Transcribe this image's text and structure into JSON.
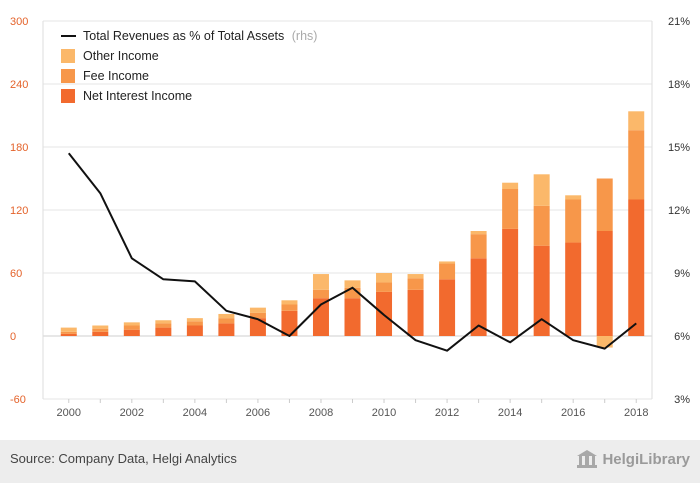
{
  "chart_data": {
    "type": "bar",
    "stacked": true,
    "categories": [
      "2000",
      "2001",
      "2002",
      "2003",
      "2004",
      "2005",
      "2006",
      "2007",
      "2008",
      "2009",
      "2010",
      "2011",
      "2012",
      "2013",
      "2014",
      "2015",
      "2016",
      "2017",
      "2018"
    ],
    "x_tick_labels": [
      "2000",
      "2002",
      "2004",
      "2006",
      "2008",
      "2010",
      "2012",
      "2014",
      "2016",
      "2018"
    ],
    "series": [
      {
        "name": "Net Interest Income",
        "color": "#f26a2e",
        "values": [
          2,
          4,
          6,
          8,
          10,
          12,
          17,
          24,
          36,
          36,
          42,
          44,
          54,
          74,
          102,
          86,
          89,
          100,
          130
        ]
      },
      {
        "name": "Fee Income",
        "color": "#f7974a",
        "values": [
          2,
          3,
          4,
          4,
          4,
          5,
          5,
          6,
          8,
          10,
          9,
          11,
          15,
          23,
          38,
          38,
          41,
          50,
          66
        ]
      },
      {
        "name": "Other Income",
        "color": "#fbb86a",
        "values": [
          4,
          3,
          3,
          3,
          3,
          4,
          5,
          4,
          15,
          7,
          9,
          4,
          2,
          3,
          6,
          30,
          4,
          -11,
          18
        ]
      }
    ],
    "line_series": {
      "name": "Total Revenues as % of Total Assets",
      "axis": "rhs",
      "color": "#111111",
      "values": [
        14.7,
        12.8,
        9.7,
        8.7,
        8.6,
        7.2,
        6.8,
        6.0,
        7.5,
        8.3,
        7.0,
        5.8,
        5.3,
        6.5,
        5.7,
        6.8,
        5.8,
        5.4,
        6.6
      ]
    },
    "y_left": {
      "min": -60,
      "max": 300,
      "ticks": [
        -60,
        0,
        60,
        120,
        180,
        240,
        300
      ]
    },
    "y_right": {
      "min": 3,
      "max": 21,
      "ticks": [
        "3%",
        "6%",
        "9%",
        "12%",
        "15%",
        "18%",
        "21%"
      ]
    },
    "grid": true,
    "legend": {
      "position": "top-left",
      "line_label": "Total Revenues as % of Total Assets",
      "line_suffix": "(rhs)",
      "items": [
        "Other Income",
        "Fee Income",
        "Net Interest Income"
      ]
    }
  },
  "footer": {
    "source": "Source: Company Data, Helgi Analytics",
    "logo_text": "HelgiLibrary"
  }
}
